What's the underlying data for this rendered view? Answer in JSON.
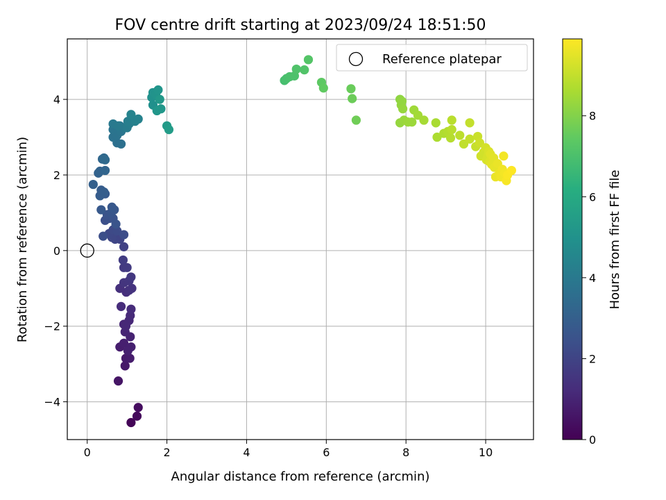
{
  "chart_data": {
    "type": "scatter",
    "title": "FOV centre drift starting at 2023/09/24 18:51:50",
    "xlabel": "Angular distance from reference (arcmin)",
    "ylabel": "Rotation from reference (arcmin)",
    "xlim": [
      -0.5,
      11.2
    ],
    "ylim": [
      -5.0,
      5.6
    ],
    "xticks": [
      0,
      2,
      4,
      6,
      8,
      10
    ],
    "yticks": [
      -4,
      -2,
      0,
      2,
      4
    ],
    "grid": true,
    "legend": {
      "placement": "top-right",
      "entries": [
        "Reference platepar"
      ]
    },
    "reference_point": {
      "name": "Reference platepar",
      "x": 0,
      "y": 0
    },
    "colorbar": {
      "label": "Hours from first FF file",
      "colormap": "viridis",
      "range": [
        0,
        9.9
      ],
      "ticks": [
        0,
        2,
        4,
        6,
        8
      ]
    },
    "points": [
      [
        1.1,
        -4.55,
        0.1
      ],
      [
        1.25,
        -4.38,
        0.25
      ],
      [
        1.28,
        -4.15,
        0.35
      ],
      [
        0.78,
        -3.45,
        0.55
      ],
      [
        0.95,
        -3.05,
        0.65
      ],
      [
        0.97,
        -2.85,
        0.7
      ],
      [
        1.07,
        -2.85,
        0.75
      ],
      [
        0.82,
        -2.55,
        0.8
      ],
      [
        0.92,
        -2.45,
        0.85
      ],
      [
        1.1,
        -2.55,
        0.9
      ],
      [
        1.02,
        -2.65,
        0.9
      ],
      [
        1.08,
        -2.28,
        0.95
      ],
      [
        0.95,
        -2.15,
        1.0
      ],
      [
        0.92,
        -1.95,
        1.05
      ],
      [
        1.05,
        -1.85,
        1.1
      ],
      [
        0.97,
        -2.0,
        1.1
      ],
      [
        1.08,
        -1.72,
        1.15
      ],
      [
        1.1,
        -1.55,
        1.2
      ],
      [
        0.85,
        -1.48,
        1.25
      ],
      [
        0.98,
        -1.1,
        1.3
      ],
      [
        0.82,
        -1.0,
        1.35
      ],
      [
        1.05,
        -1.05,
        1.4
      ],
      [
        1.12,
        -1.0,
        1.45
      ],
      [
        0.92,
        -0.85,
        1.5
      ],
      [
        1.05,
        -0.8,
        1.55
      ],
      [
        1.1,
        -0.7,
        1.6
      ],
      [
        0.92,
        -0.45,
        1.65
      ],
      [
        1.0,
        -0.45,
        1.7
      ],
      [
        0.9,
        -0.25,
        1.75
      ],
      [
        0.92,
        0.1,
        1.9
      ],
      [
        0.82,
        0.3,
        2.0
      ],
      [
        0.7,
        0.3,
        2.05
      ],
      [
        0.62,
        0.35,
        2.1
      ],
      [
        0.55,
        0.45,
        2.15
      ],
      [
        0.65,
        0.55,
        2.2
      ],
      [
        0.75,
        0.52,
        2.25
      ],
      [
        0.92,
        0.42,
        2.3
      ],
      [
        0.4,
        0.38,
        2.35
      ],
      [
        0.45,
        0.8,
        2.4
      ],
      [
        0.55,
        0.85,
        2.45
      ],
      [
        0.5,
        0.95,
        2.5
      ],
      [
        0.65,
        0.85,
        2.5
      ],
      [
        0.72,
        0.7,
        2.55
      ],
      [
        0.6,
        1.0,
        2.6
      ],
      [
        0.68,
        1.08,
        2.65
      ],
      [
        0.62,
        1.15,
        2.7
      ],
      [
        0.35,
        1.08,
        2.75
      ],
      [
        0.45,
        1.5,
        2.8
      ],
      [
        0.35,
        1.6,
        2.85
      ],
      [
        0.32,
        1.45,
        2.9
      ],
      [
        0.42,
        1.55,
        2.95
      ],
      [
        0.15,
        1.75,
        3.0
      ],
      [
        0.28,
        2.05,
        3.1
      ],
      [
        0.32,
        2.1,
        3.15
      ],
      [
        0.45,
        2.12,
        3.2
      ],
      [
        0.38,
        2.42,
        3.3
      ],
      [
        0.42,
        2.45,
        3.35
      ],
      [
        0.45,
        2.4,
        3.4
      ],
      [
        0.75,
        2.85,
        3.6
      ],
      [
        0.85,
        2.82,
        3.65
      ],
      [
        0.65,
        3.0,
        3.7
      ],
      [
        0.75,
        3.05,
        3.75
      ],
      [
        0.65,
        3.2,
        3.8
      ],
      [
        0.85,
        3.15,
        3.85
      ],
      [
        0.82,
        3.3,
        3.9
      ],
      [
        0.92,
        3.25,
        3.95
      ],
      [
        0.65,
        3.35,
        4.0
      ],
      [
        0.78,
        3.3,
        4.05
      ],
      [
        1.0,
        3.25,
        4.1
      ],
      [
        1.05,
        3.35,
        4.15
      ],
      [
        1.02,
        3.42,
        4.2
      ],
      [
        1.12,
        3.5,
        4.25
      ],
      [
        1.2,
        3.42,
        4.3
      ],
      [
        1.28,
        3.48,
        4.35
      ],
      [
        1.1,
        3.6,
        4.4
      ],
      [
        1.65,
        3.85,
        4.9
      ],
      [
        1.62,
        4.05,
        4.95
      ],
      [
        1.65,
        4.18,
        5.0
      ],
      [
        1.72,
        4.12,
        5.05
      ],
      [
        1.78,
        4.25,
        5.1
      ],
      [
        1.75,
        3.7,
        5.15
      ],
      [
        1.85,
        3.75,
        5.2
      ],
      [
        1.82,
        4.0,
        5.25
      ],
      [
        2.0,
        3.3,
        5.35
      ],
      [
        2.05,
        3.2,
        5.4
      ],
      [
        4.95,
        4.5,
        6.9
      ],
      [
        5.0,
        4.55,
        6.95
      ],
      [
        5.08,
        4.6,
        7.0
      ],
      [
        5.2,
        4.62,
        7.05
      ],
      [
        5.25,
        4.8,
        7.1
      ],
      [
        5.45,
        4.78,
        7.15
      ],
      [
        5.55,
        5.05,
        7.2
      ],
      [
        5.88,
        4.45,
        7.4
      ],
      [
        5.93,
        4.3,
        7.45
      ],
      [
        6.62,
        4.28,
        7.6
      ],
      [
        6.65,
        4.02,
        7.65
      ],
      [
        6.75,
        3.45,
        7.7
      ],
      [
        7.85,
        4.0,
        8.2
      ],
      [
        7.88,
        3.85,
        8.25
      ],
      [
        7.9,
        3.95,
        8.25
      ],
      [
        7.92,
        3.75,
        8.3
      ],
      [
        7.85,
        3.38,
        8.3
      ],
      [
        7.95,
        3.45,
        8.35
      ],
      [
        8.05,
        3.4,
        8.4
      ],
      [
        8.15,
        3.4,
        8.4
      ],
      [
        8.2,
        3.72,
        8.45
      ],
      [
        8.3,
        3.58,
        8.5
      ],
      [
        8.45,
        3.45,
        8.55
      ],
      [
        8.75,
        3.38,
        8.6
      ],
      [
        8.78,
        3.0,
        8.65
      ],
      [
        8.95,
        3.1,
        8.7
      ],
      [
        9.05,
        3.15,
        8.75
      ],
      [
        9.12,
        2.98,
        8.8
      ],
      [
        9.15,
        3.2,
        8.85
      ],
      [
        9.15,
        3.45,
        8.85
      ],
      [
        9.35,
        3.05,
        8.9
      ],
      [
        9.45,
        2.82,
        8.95
      ],
      [
        9.6,
        2.95,
        9.0
      ],
      [
        9.6,
        3.38,
        9.0
      ],
      [
        9.75,
        2.75,
        9.05
      ],
      [
        9.8,
        3.02,
        9.1
      ],
      [
        9.85,
        2.85,
        9.15
      ],
      [
        9.88,
        2.5,
        9.2
      ],
      [
        9.95,
        2.6,
        9.2
      ],
      [
        10.0,
        2.72,
        9.25
      ],
      [
        10.02,
        2.4,
        9.3
      ],
      [
        10.05,
        2.5,
        9.3
      ],
      [
        10.08,
        2.62,
        9.35
      ],
      [
        10.1,
        2.35,
        9.4
      ],
      [
        10.12,
        2.55,
        9.45
      ],
      [
        10.15,
        2.28,
        9.5
      ],
      [
        10.2,
        2.45,
        9.5
      ],
      [
        10.22,
        2.2,
        9.55
      ],
      [
        10.25,
        1.95,
        9.6
      ],
      [
        10.3,
        2.3,
        9.6
      ],
      [
        10.35,
        2.05,
        9.65
      ],
      [
        10.38,
        1.95,
        9.7
      ],
      [
        10.42,
        2.15,
        9.7
      ],
      [
        10.45,
        2.5,
        9.75
      ],
      [
        10.48,
        2.05,
        9.75
      ],
      [
        10.52,
        1.85,
        9.8
      ],
      [
        10.55,
        2.0,
        9.85
      ],
      [
        10.65,
        2.12,
        9.9
      ]
    ]
  }
}
